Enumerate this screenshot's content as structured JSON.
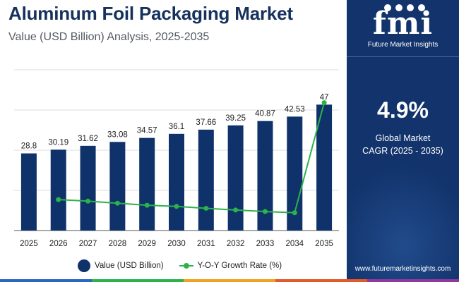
{
  "header": {
    "title": "Aluminum Foil Packaging Market",
    "subtitle": "Value (USD Billion) Analysis, 2025-2035"
  },
  "chart_data": {
    "type": "bar",
    "categories": [
      "2025",
      "2026",
      "2027",
      "2028",
      "2029",
      "2030",
      "2031",
      "2032",
      "2033",
      "2034",
      "2035"
    ],
    "series": [
      {
        "name": "Value (USD Billion)",
        "type": "bar",
        "values": [
          28.8,
          30.19,
          31.62,
          33.08,
          34.57,
          36.1,
          37.66,
          39.25,
          40.87,
          42.53,
          47
        ],
        "labels": [
          "28.8",
          "30.19",
          "31.62",
          "33.08",
          "34.57",
          "36.1",
          "37.66",
          "39.25",
          "40.87",
          "42.53",
          "47"
        ]
      },
      {
        "name": "Y-O-Y Growth Rate (%)",
        "type": "line",
        "values": [
          null,
          4.83,
          4.74,
          4.62,
          4.5,
          4.43,
          4.32,
          4.22,
          4.13,
          4.06,
          10.51
        ]
      }
    ],
    "ylim": [
      0,
      50
    ],
    "grid": true,
    "legend": "bottom",
    "colors": {
      "bar": "#10326a",
      "line": "#2bb34a",
      "grid": "#d9dce1",
      "axis": "#555555"
    }
  },
  "legend": {
    "value_label": "Value (USD Billion)",
    "growth_label": "Y-O-Y Growth Rate (%)"
  },
  "side_panel": {
    "logo": "fmi",
    "logo_subtitle": "Future Market Insights",
    "cagr_value": "4.9%",
    "cagr_label_line1": "Global Market",
    "cagr_label_line2": "CAGR (2025 - 2035)",
    "website": "www.futuremarketinsights.com",
    "background_color": "#12336b"
  },
  "bottom_bar_colors": [
    "#2a67c4",
    "#2bb34a",
    "#f0a21f",
    "#e2592a",
    "#8e3a9c"
  ]
}
